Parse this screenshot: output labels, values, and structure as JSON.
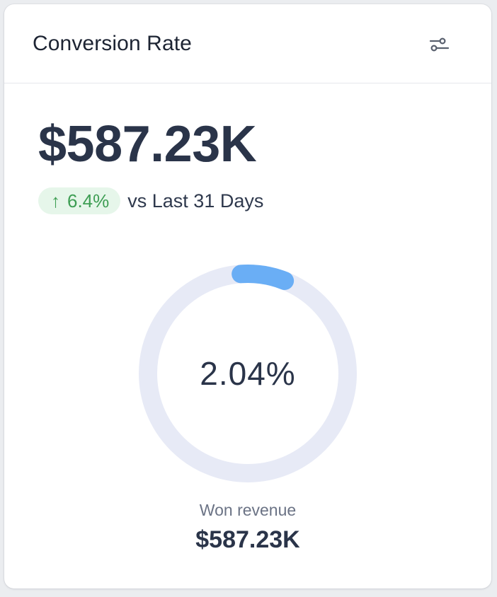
{
  "card": {
    "title": "Conversion Rate",
    "filter_icon": "sliders-icon"
  },
  "summary": {
    "value": "$587.23K",
    "delta": {
      "arrow": "↑",
      "percent": "6.4%",
      "direction": "up"
    },
    "comparison": "vs Last 31 Days"
  },
  "gauge": {
    "center_text": "2.04%",
    "fraction": 0.0204,
    "track_color": "#e7eaf6",
    "progress_color": "#6aaef5"
  },
  "footer": {
    "label": "Won revenue",
    "value": "$587.23K"
  },
  "colors": {
    "positive_bg": "#e6f6ea",
    "positive_text": "#3e9e54",
    "text_primary": "#2a3449",
    "text_muted": "#6b7385"
  }
}
